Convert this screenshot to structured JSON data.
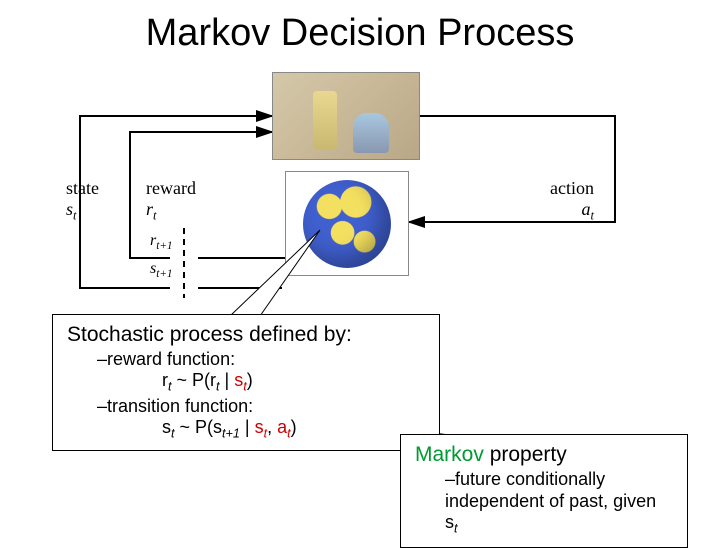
{
  "title": "Markov Decision Process",
  "diagram": {
    "state_label_html": "state<br><span class='ital'>s</span><span class='sub'>t</span>",
    "reward_label_html": "reward<br><span class='ital'>r</span><span class='sub'>t</span>",
    "action_label_html": "action<br><span class='ital'>a</span><span class='sub'>t</span>",
    "next_r_html": "r<span class='sub'>t+1</span>",
    "next_s_html": "s<span class='sub'>t+1</span>",
    "line_color": "#000000",
    "dash_color": "#000000"
  },
  "box1": {
    "title": "Stochastic process defined by:",
    "reward_def": "–reward function:",
    "reward_formula_html": "r<span class='sub'>t</span> ~ P(r<span class='sub'>t</span> | <span class='cond-red'>s<span class='sub'>t</span></span>)",
    "trans_def": "–transition function:",
    "trans_formula_html": "s<span class='sub'>t</span> ~ P(s<span class='sub'>t+1</span> | <span class='cond-red'>s<span class='sub'>t</span></span>, <span class='cond-red'>a<span class='sub'>t</span></span>)"
  },
  "box2": {
    "title_html": "<span class='mp-green'>Markov</span> property",
    "body_html": "–future conditionally independent of past, given s<span class='sub'>t</span>"
  }
}
